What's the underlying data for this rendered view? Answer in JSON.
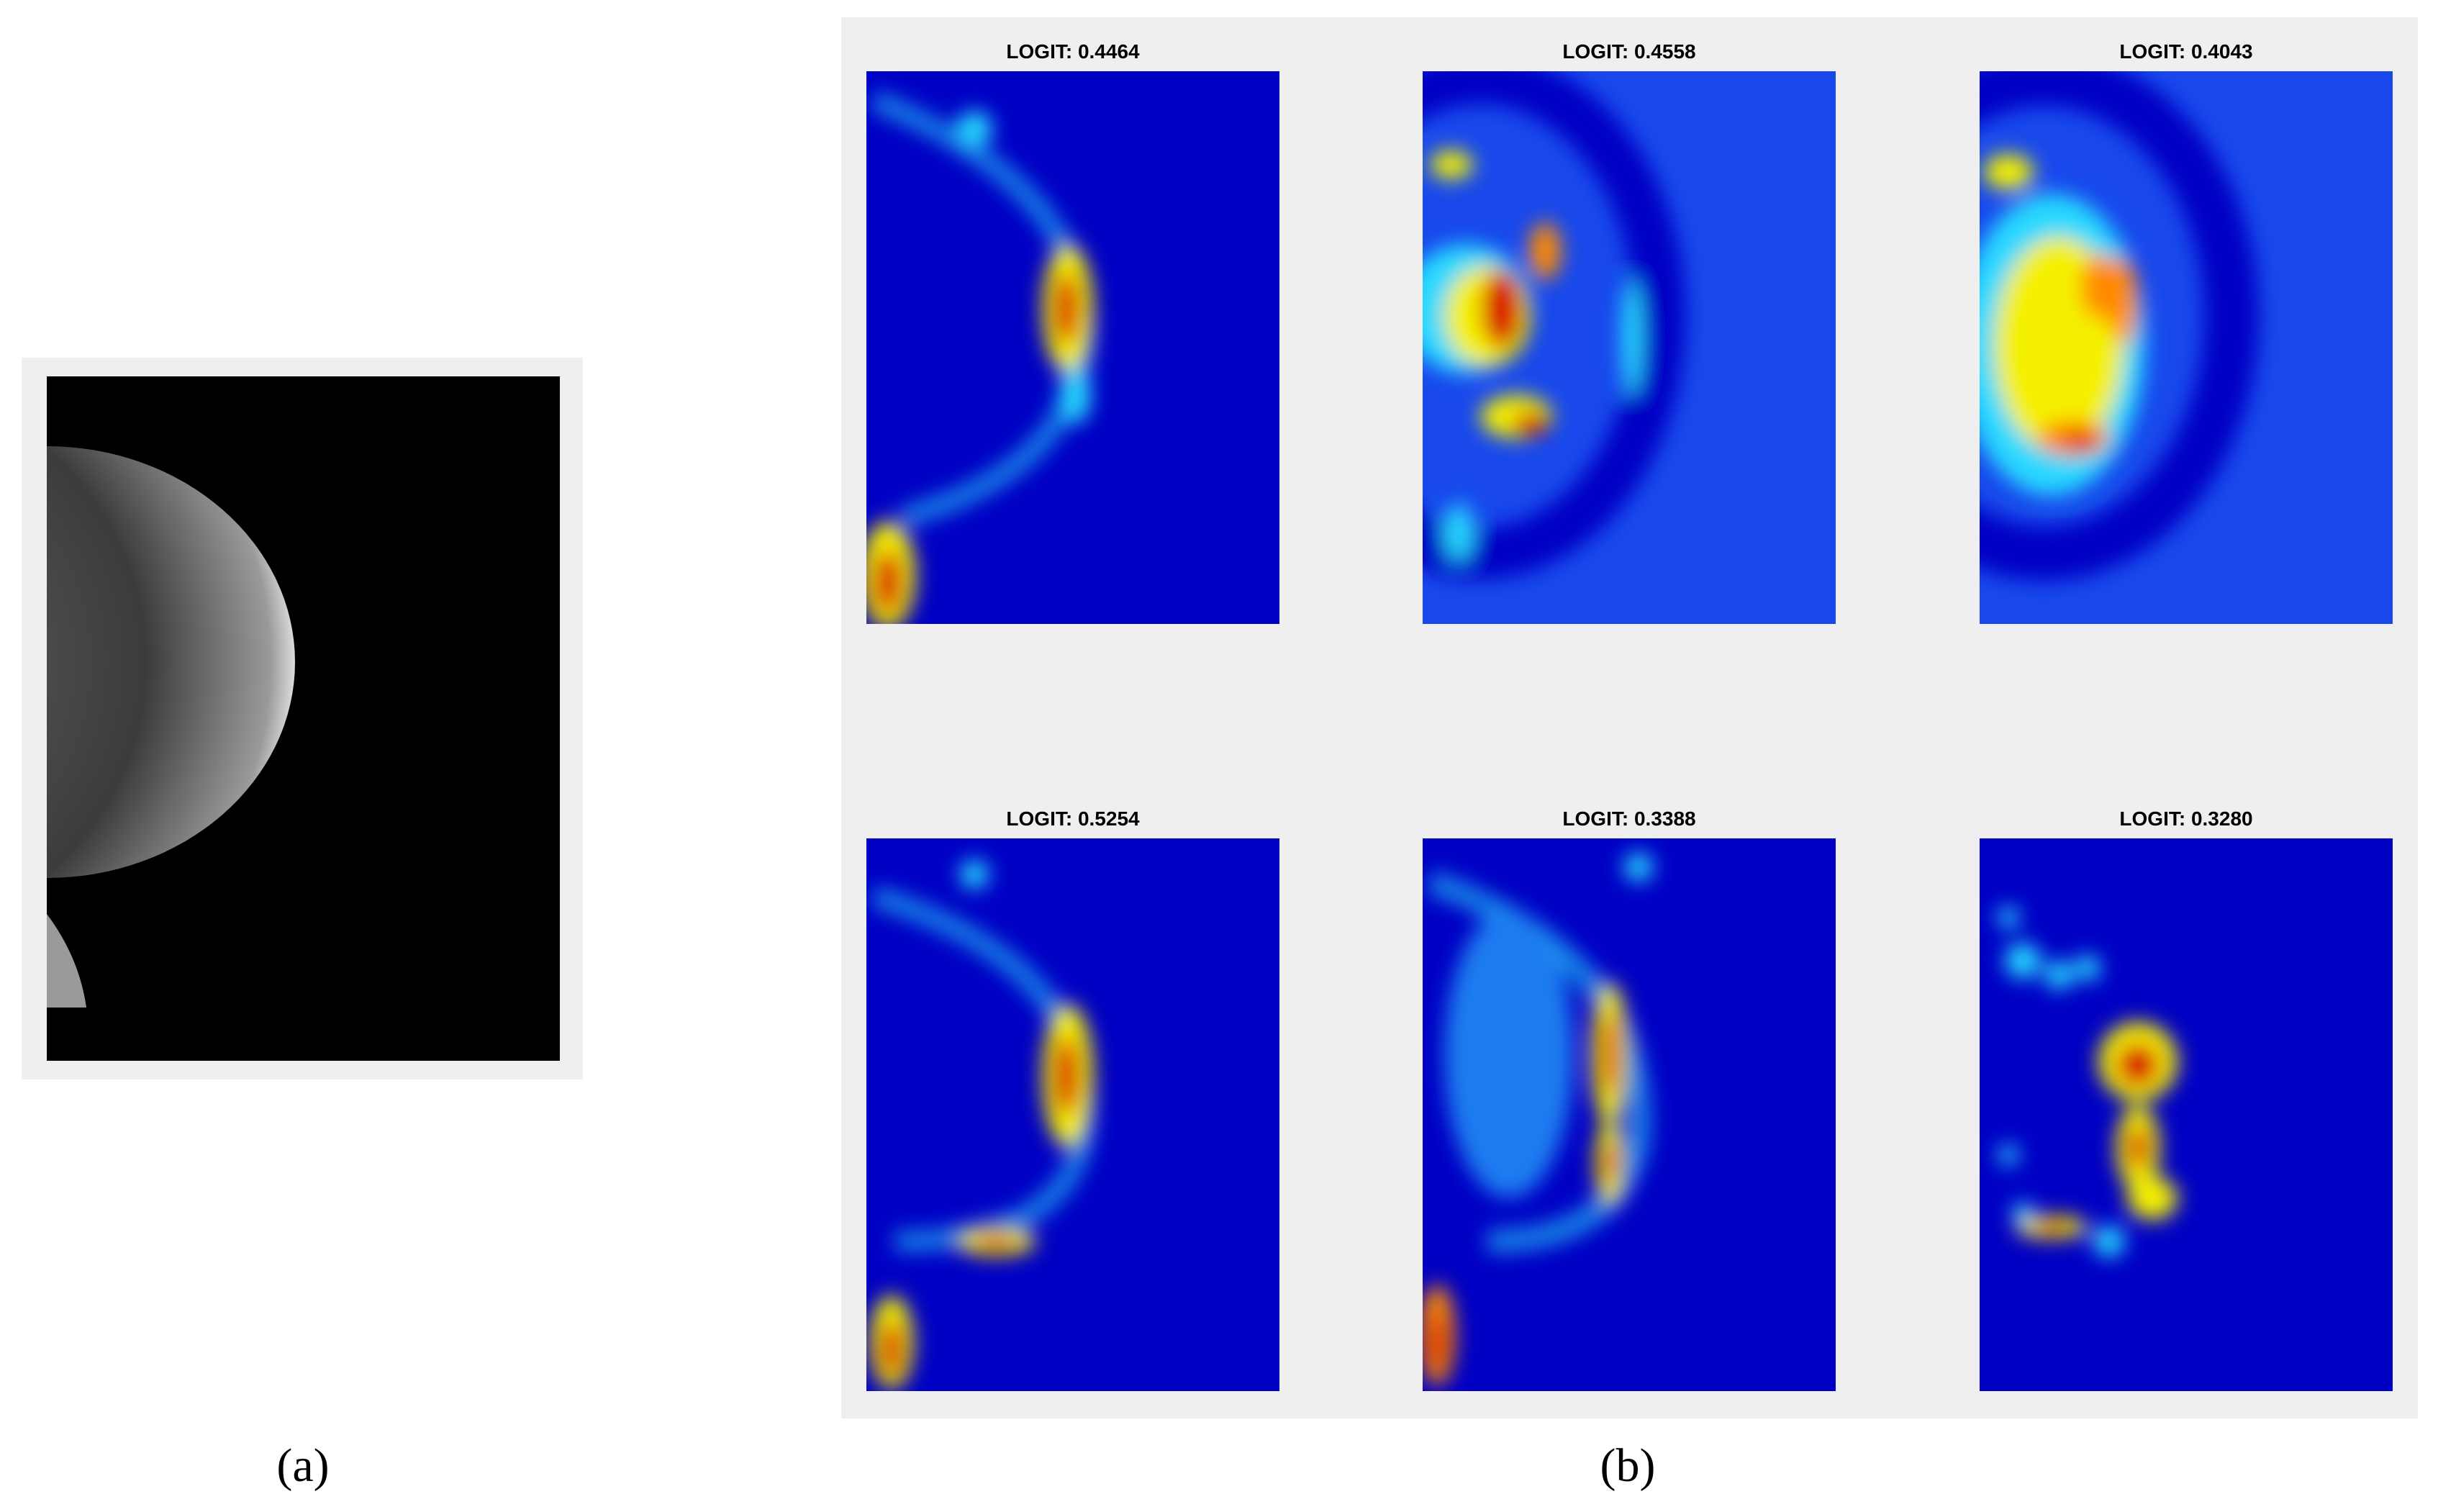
{
  "panel_a": {
    "caption": "(a)"
  },
  "panel_b": {
    "caption": "(b)",
    "heatmaps": [
      {
        "title": "LOGIT: 0.4464"
      },
      {
        "title": "LOGIT: 0.4558"
      },
      {
        "title": "LOGIT: 0.4043"
      },
      {
        "title": "LOGIT: 0.5254"
      },
      {
        "title": "LOGIT: 0.3388"
      },
      {
        "title": "LOGIT: 0.3280"
      }
    ]
  }
}
